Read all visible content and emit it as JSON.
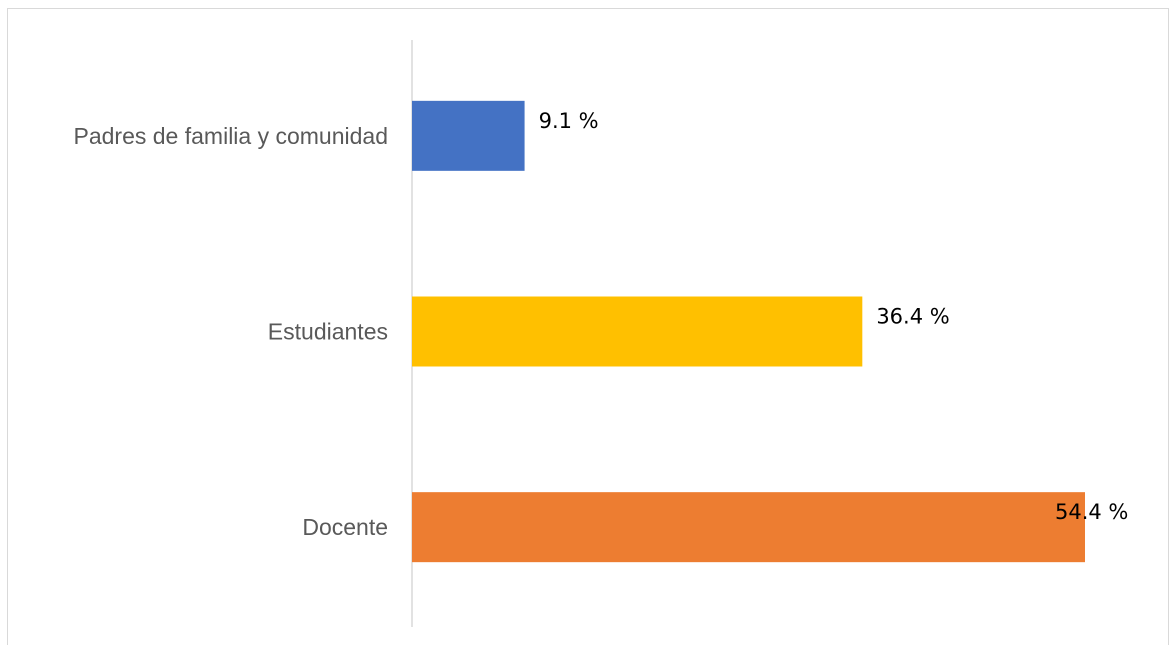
{
  "chart_data": {
    "type": "bar",
    "orientation": "horizontal",
    "title": "",
    "xlabel": "",
    "ylabel": "",
    "categories": [
      "Padres de familia y comunidad",
      "Estudiantes",
      "Docente"
    ],
    "values": [
      9.1,
      36.4,
      54.4
    ],
    "data_labels": [
      "9.1  %",
      "36.4 %",
      "54.4 %"
    ],
    "colors": [
      "#4472c4",
      "#ffc000",
      "#ed7d31"
    ],
    "xlim": [
      0,
      55
    ],
    "grid": false,
    "legend": "none"
  }
}
